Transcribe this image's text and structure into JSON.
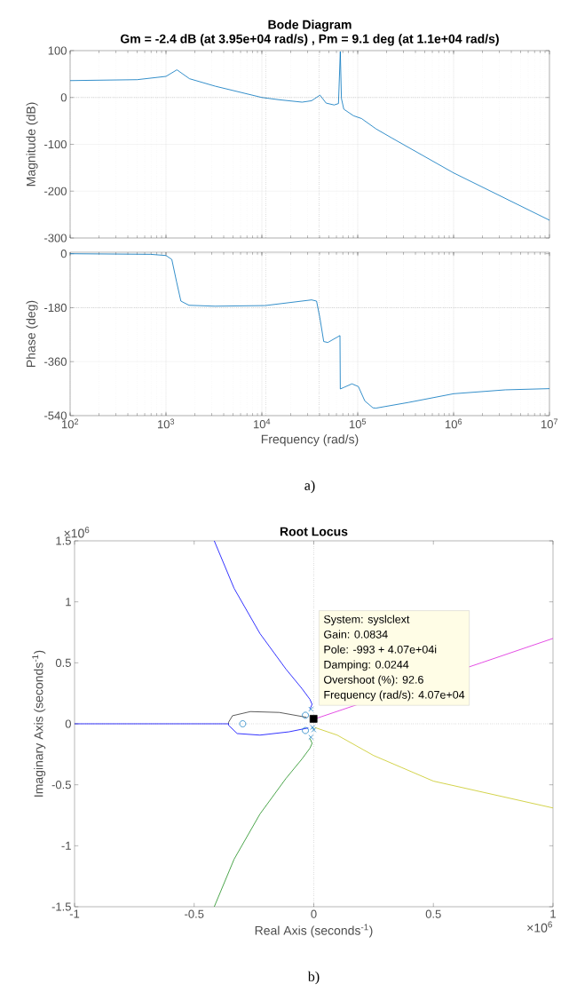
{
  "chart_data": [
    {
      "type": "line",
      "title": "Bode Diagram",
      "subtitle": "Gm = -2.4 dB (at 3.95e+04 rad/s) ,  Pm = 9.1 deg (at 1.1e+04 rad/s)",
      "ylabel": "Magnitude (dB)",
      "log": "x",
      "grid": true,
      "tick_labels": "y",
      "xlim": [
        100,
        10000000
      ],
      "ylim": [
        -300,
        100
      ],
      "xticks": [
        {
          "value": 100,
          "label": null
        },
        {
          "value": 1000,
          "label": null
        },
        {
          "value": 10000,
          "label": null
        },
        {
          "value": 100000,
          "label": null
        },
        {
          "value": 1000000,
          "label": null
        },
        {
          "value": 10000000,
          "label": null
        }
      ],
      "yticks": [
        -300,
        -200,
        -100,
        0,
        100
      ],
      "ref_lines": [
        {
          "axis": "y",
          "value": 0,
          "color": "#262626",
          "line_style": "dotted"
        },
        {
          "axis": "x",
          "value": 11000,
          "color": "#262626",
          "line_style": "dotted"
        },
        {
          "axis": "x",
          "value": 39500,
          "color": "#262626",
          "line_style": "dotted"
        }
      ],
      "series": [
        {
          "color": "#0072bd",
          "x": [
            100,
            500,
            1000,
            1300,
            1760,
            3270,
            10000,
            15300,
            26300,
            33000,
            40400,
            46800,
            56800,
            63000,
            65800,
            67600,
            71600,
            90300,
            109600,
            155000,
            229000,
            1000000,
            10000000
          ],
          "values": [
            36,
            38,
            45,
            59,
            40,
            24,
            0,
            -5,
            -10,
            -7,
            5,
            -12,
            -16,
            -13,
            98,
            -2,
            -25,
            -39,
            -45,
            -67,
            -87,
            -161,
            -262
          ]
        }
      ]
    },
    {
      "type": "line",
      "xlabel": "Frequency  (rad/s)",
      "ylabel": "Phase (deg)",
      "log": "x",
      "grid": true,
      "xlim": [
        100,
        10000000
      ],
      "ylim": [
        -540,
        5
      ],
      "xticks": [
        {
          "value": 100,
          "label": "10$^{2}$"
        },
        {
          "value": 1000,
          "label": "10$^{3}$"
        },
        {
          "value": 10000,
          "label": "10$^{4}$"
        },
        {
          "value": 100000,
          "label": "10$^{5}$"
        },
        {
          "value": 1000000,
          "label": "10$^{6}$"
        },
        {
          "value": 10000000,
          "label": "10$^{7}$"
        }
      ],
      "yticks": [
        -540,
        -360,
        -180,
        0
      ],
      "ref_lines": [
        {
          "axis": "y",
          "value": -180,
          "color": "#262626",
          "line_style": "dotted"
        },
        {
          "axis": "x",
          "value": 11000,
          "color": "#262626",
          "line_style": "dotted"
        },
        {
          "axis": "x",
          "value": 39500,
          "color": "#262626",
          "line_style": "dotted"
        }
      ],
      "annotations": [
        "a)"
      ],
      "series": [
        {
          "color": "#0072bd",
          "x": [
            100,
            690,
            1000,
            1150,
            1290,
            1430,
            1740,
            3240,
            10800,
            33000,
            37200,
            40200,
            44200,
            48800,
            65300,
            65800,
            71600,
            87000,
            101600,
            118600,
            144000,
            155000,
            339000,
            1000000,
            3470000,
            10000000
          ],
          "values": [
            0,
            -2,
            -6,
            -19,
            -94,
            -158,
            -172,
            -175,
            -173,
            -154,
            -158,
            -212,
            -293,
            -296,
            -273,
            -451,
            -446,
            -434,
            -443,
            -491,
            -514,
            -515,
            -496,
            -467,
            -454,
            -450
          ]
        }
      ]
    },
    {
      "type": "line",
      "title": "Root Locus",
      "xlabel": "Real Axis (seconds$^{-1}$)",
      "ylabel": "Imaginary Axis (seconds$^{-1}$)",
      "xlim": [
        -1,
        1
      ],
      "ylim": [
        -1.5,
        1.5
      ],
      "xticks": [
        -1,
        -0.5,
        0,
        0.5,
        1
      ],
      "yticks": [
        -1.5,
        -1,
        -0.5,
        0,
        0.5,
        1,
        1.5
      ],
      "ref_lines": [
        {
          "axis": "x",
          "value": 0,
          "color": "#262626",
          "line_style": "dotted"
        },
        {
          "axis": "y",
          "value": 0,
          "color": "#262626",
          "line_style": "dotted"
        }
      ],
      "annotations": [
        "System: syslclext",
        "Gain: 0.0834",
        "Pole: -993 + 4.07e+04i",
        "Damping: 0.0244",
        "Overshoot (%): 92.6",
        "Frequency (rad/s): 4.07e+04",
        "×10$^{6}$",
        "×10$^{6}$",
        "b)"
      ],
      "series": [
        {
          "color": "#0000ff",
          "x": [
            -0.016,
            -0.007,
            -0.016,
            -0.05,
            -0.117,
            -0.225,
            -0.333,
            -0.416
          ],
          "values": [
            0.12,
            0.16,
            0.2,
            0.29,
            0.45,
            0.74,
            1.11,
            1.5
          ]
        },
        {
          "color": "#1f8f1f",
          "x": [
            -0.016,
            -0.007,
            -0.016,
            -0.05,
            -0.117,
            -0.225,
            -0.333,
            -0.416
          ],
          "values": [
            -0.12,
            -0.16,
            -0.2,
            -0.29,
            -0.45,
            -0.74,
            -1.11,
            -1.5
          ]
        },
        {
          "color": "#dd22dd",
          "x": [
            0.004,
            0.08,
            0.7,
            1
          ],
          "values": [
            0.04,
            0.09,
            0.5,
            0.7
          ]
        },
        {
          "color": "#c8c81e",
          "x": [
            0.004,
            0.098,
            0.25,
            0.5,
            1
          ],
          "values": [
            -0.03,
            -0.093,
            -0.26,
            -0.47,
            -0.69
          ]
        },
        {
          "color": "#333333",
          "x": [
            -0.03,
            -0.144,
            -0.265,
            -0.34,
            -0.356,
            -0.356
          ],
          "values": [
            0.053,
            0.093,
            0.1,
            0.066,
            0.013,
            0
          ]
        },
        {
          "color": "#0000ff",
          "x": [
            -1,
            -0.356,
            -0.356,
            -0.32,
            -0.225,
            -0.104,
            -0.023
          ],
          "values": [
            0,
            0,
            -0.013,
            -0.08,
            -0.093,
            -0.066,
            -0.034
          ]
        },
        {
          "type": "scatter",
          "marker": "circle",
          "color": "#0072bd",
          "x": [
            -0.297,
            -0.035,
            -0.035
          ],
          "values": [
            0,
            0.07,
            -0.055
          ]
        },
        {
          "type": "scatter",
          "marker": "cross",
          "color": "#0072bd",
          "x": [
            -0.012,
            -0.012,
            0.0,
            -0.005
          ],
          "values": [
            0.12,
            -0.11,
            -0.05,
            -0.03
          ]
        },
        {
          "type": "scatter",
          "marker": "square",
          "color": "#000000",
          "x": [
            -0.000993
          ],
          "values": [
            0.0407
          ]
        }
      ]
    }
  ]
}
